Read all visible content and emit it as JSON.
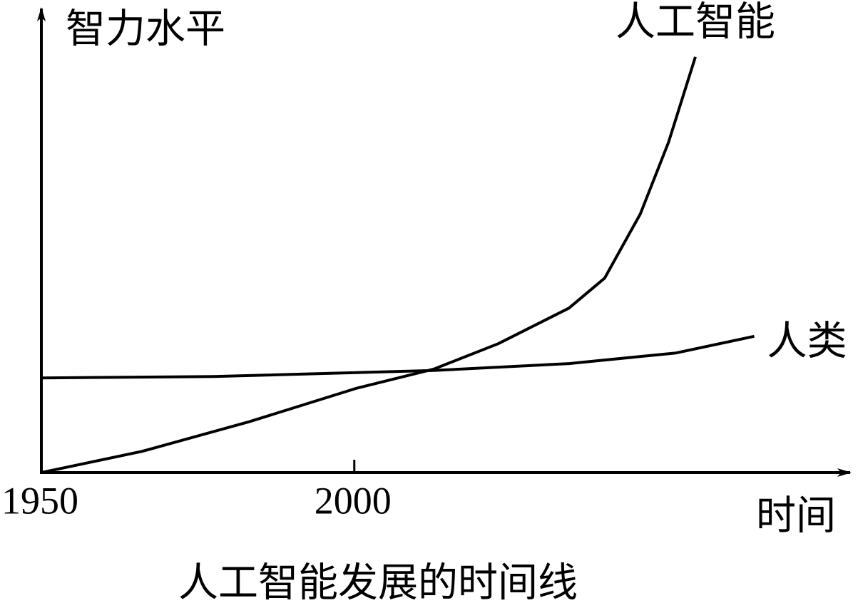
{
  "chart_data": {
    "type": "line",
    "title": "人工智能发展的时间线",
    "y_label": "智力水平",
    "x_label": "时间",
    "xlim": [
      1950,
      2079
    ],
    "xticks": [
      1950,
      2000
    ],
    "ylim": [
      0,
      100
    ],
    "series": [
      {
        "name": "人工智能",
        "color": "#000000",
        "x": [
          1950,
          1966.1,
          1983.2,
          2000.2,
          2012.7,
          2023,
          2034.3,
          2040,
          2045.7,
          2050.2,
          2054.5
        ],
        "values": [
          0,
          4.6,
          11.0,
          18.2,
          22.4,
          27.9,
          35.6,
          42.1,
          56.0,
          71.5,
          90.0
        ]
      },
      {
        "name": "人类",
        "color": "#000000",
        "x": [
          1950,
          1977.5,
          2012.7,
          2034.3,
          2051.4,
          2063.9
        ],
        "values": [
          20.5,
          20.8,
          22.1,
          23.6,
          25.9,
          29.5
        ]
      }
    ]
  }
}
